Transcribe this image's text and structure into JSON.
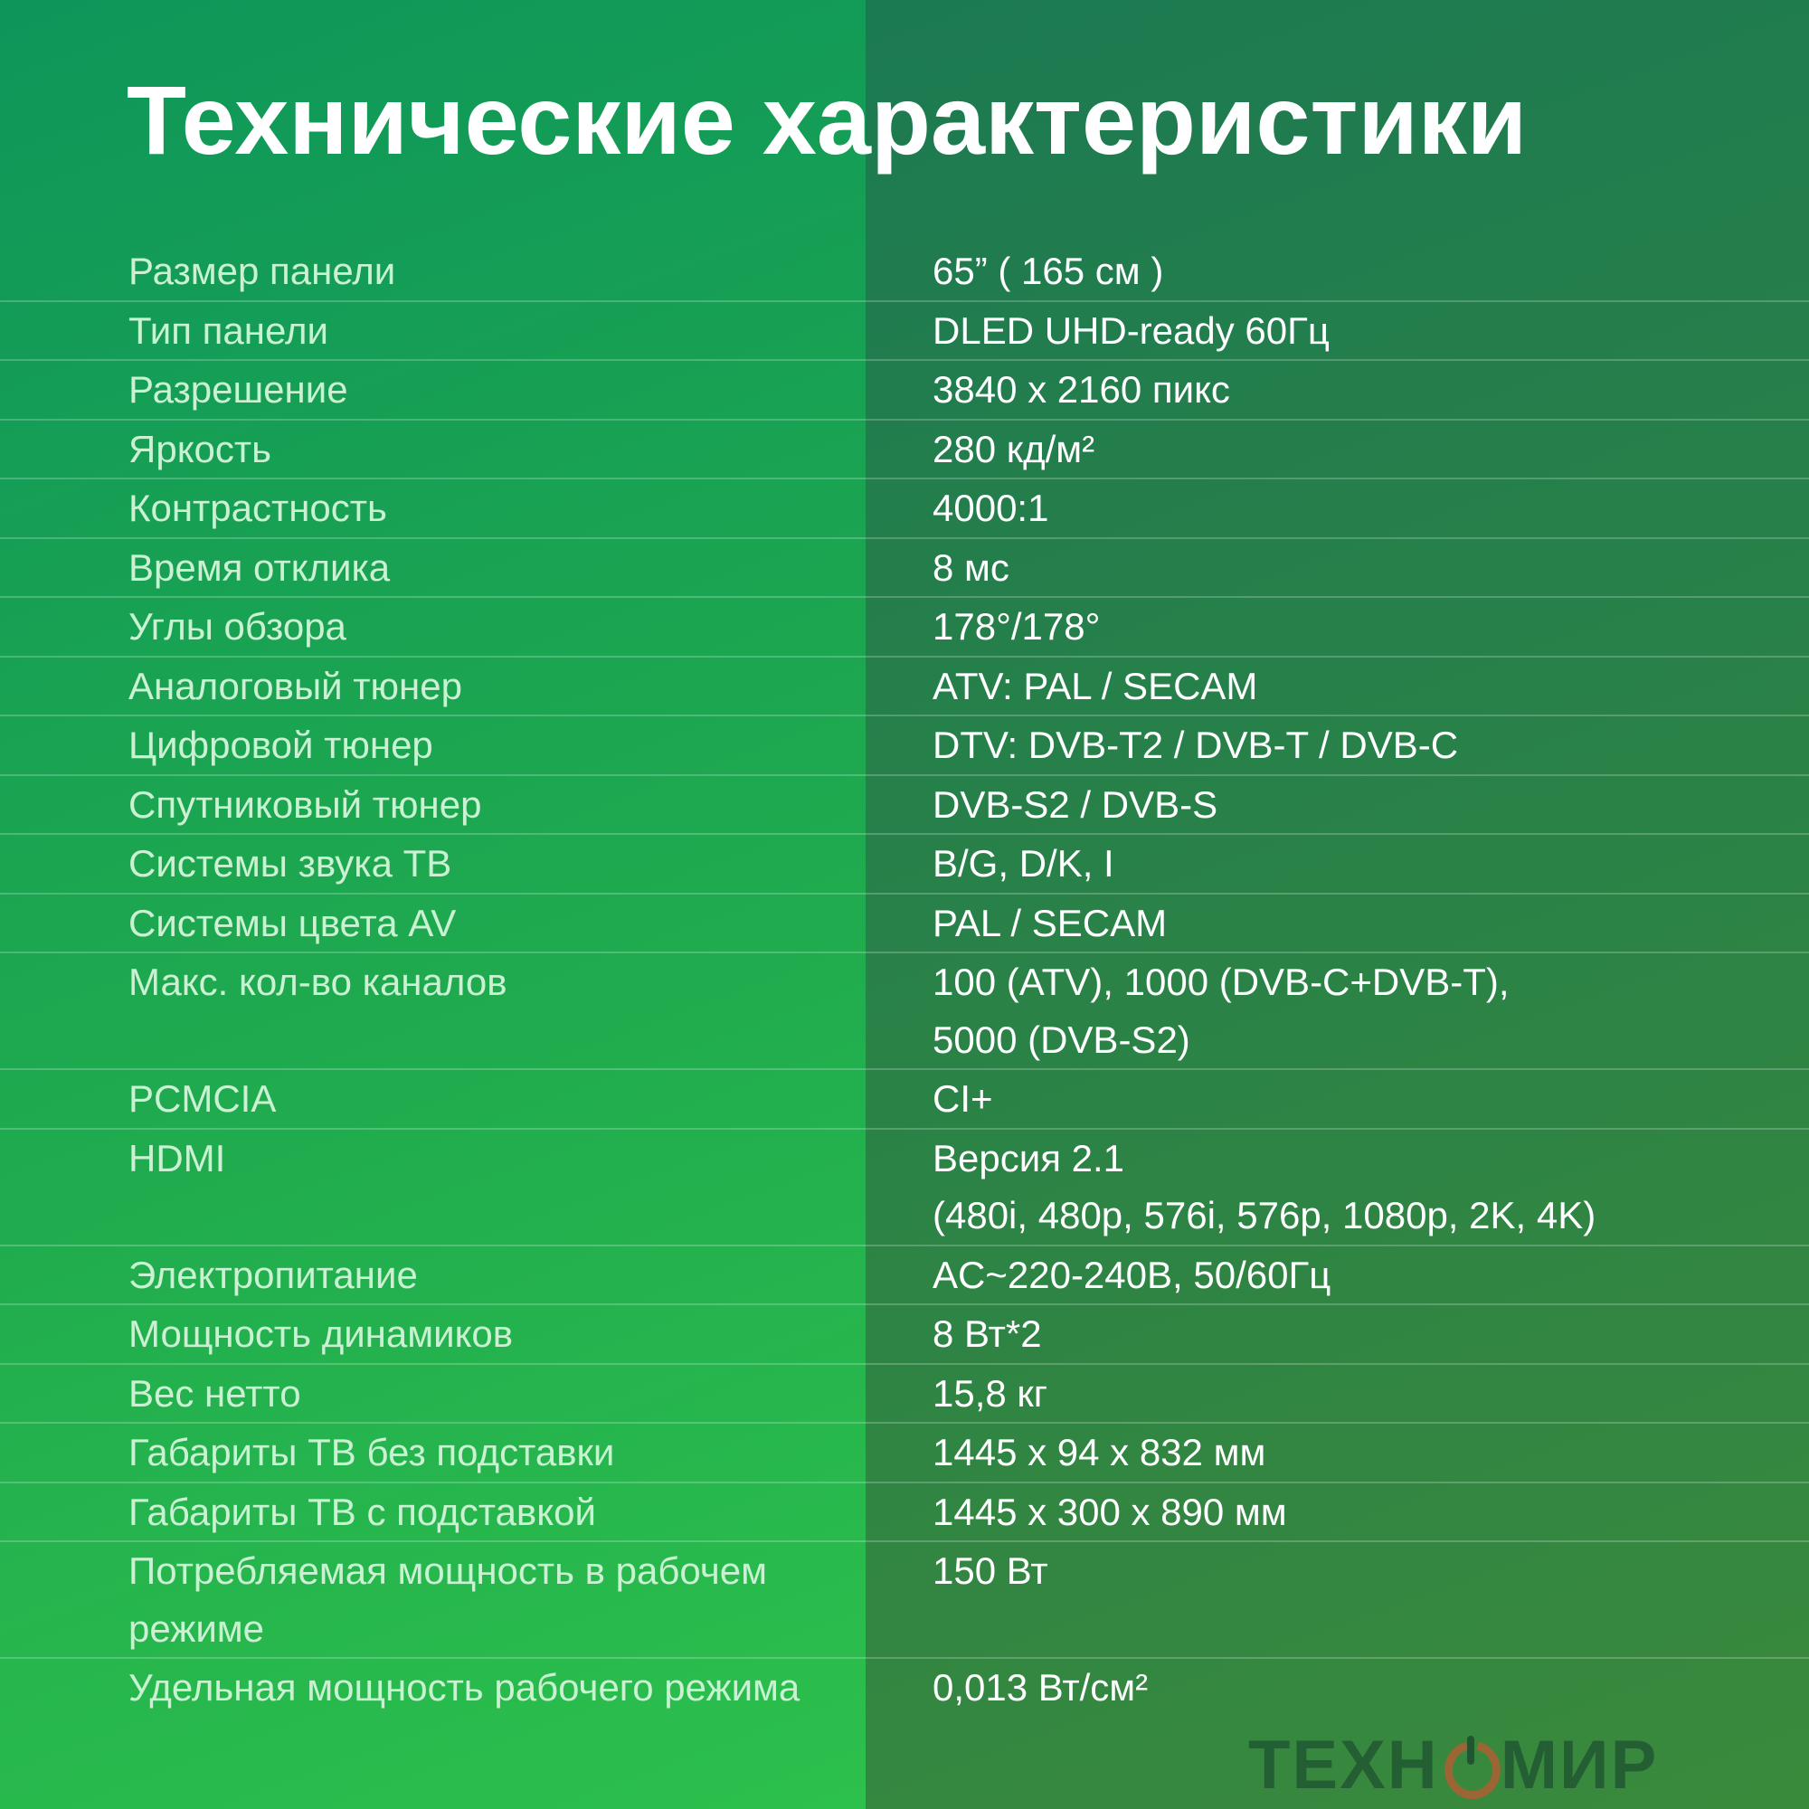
{
  "title": "Технические характеристики",
  "watermark": {
    "left": "ТЕХН",
    "right": "МИР",
    "accent_color": "#be5a32"
  },
  "colors": {
    "left_panel": "#1ea84f",
    "right_panel": "#2a8247",
    "label": "#c9f1d2",
    "value": "#ffffff"
  },
  "specs": [
    {
      "label": "Размер панели",
      "value": [
        "65” ( 165 см )"
      ]
    },
    {
      "label": "Тип панели",
      "value": [
        "DLED UHD-ready 60Гц"
      ]
    },
    {
      "label": "Разрешение",
      "value": [
        "3840 x 2160 пикс"
      ]
    },
    {
      "label": "Яркость",
      "value": [
        "280 кд/м²"
      ]
    },
    {
      "label": "Контрастность",
      "value": [
        "4000:1"
      ]
    },
    {
      "label": "Время отклика",
      "value": [
        "8 мс"
      ]
    },
    {
      "label": "Углы обзора",
      "value": [
        "178°/178°"
      ]
    },
    {
      "label": "Аналоговый тюнер",
      "value": [
        "ATV: PAL / SECAM"
      ]
    },
    {
      "label": "Цифровой тюнер",
      "value": [
        "DTV: DVB-T2 / DVB-T / DVB-C"
      ]
    },
    {
      "label": "Спутниковый тюнер",
      "value": [
        "DVB-S2 / DVB-S"
      ]
    },
    {
      "label": "Системы звука ТВ",
      "value": [
        "B/G, D/K, I"
      ]
    },
    {
      "label": "Системы цвета AV",
      "value": [
        "PAL / SECAM"
      ]
    },
    {
      "label": "Макс. кол-во каналов",
      "value": [
        "100 (ATV), 1000 (DVB-C+DVB-T),",
        "5000 (DVB-S2)"
      ]
    },
    {
      "label": "PCMCIA",
      "value": [
        "CI+"
      ]
    },
    {
      "label": "HDMI",
      "value": [
        "Версия 2.1",
        "(480i, 480p, 576i, 576p, 1080p, 2K, 4K)"
      ]
    },
    {
      "label": "Электропитание",
      "value": [
        "AC~220-240В, 50/60Гц"
      ]
    },
    {
      "label": "Мощность динамиков",
      "value": [
        "8 Вт*2"
      ]
    },
    {
      "label": "Вес нетто",
      "value": [
        "15,8 кг"
      ]
    },
    {
      "label": "Габариты ТВ без подставки",
      "value": [
        "1445 x 94 x 832 мм"
      ]
    },
    {
      "label": "Габариты ТВ с подставкой",
      "value": [
        "1445 x 300 x 890 мм"
      ]
    },
    {
      "label": "Потребляемая мощность в рабочем режиме",
      "value": [
        "150 Вт"
      ]
    },
    {
      "label": "Удельная мощность рабочего режима",
      "value": [
        "0,013 Вт/см²"
      ]
    }
  ]
}
